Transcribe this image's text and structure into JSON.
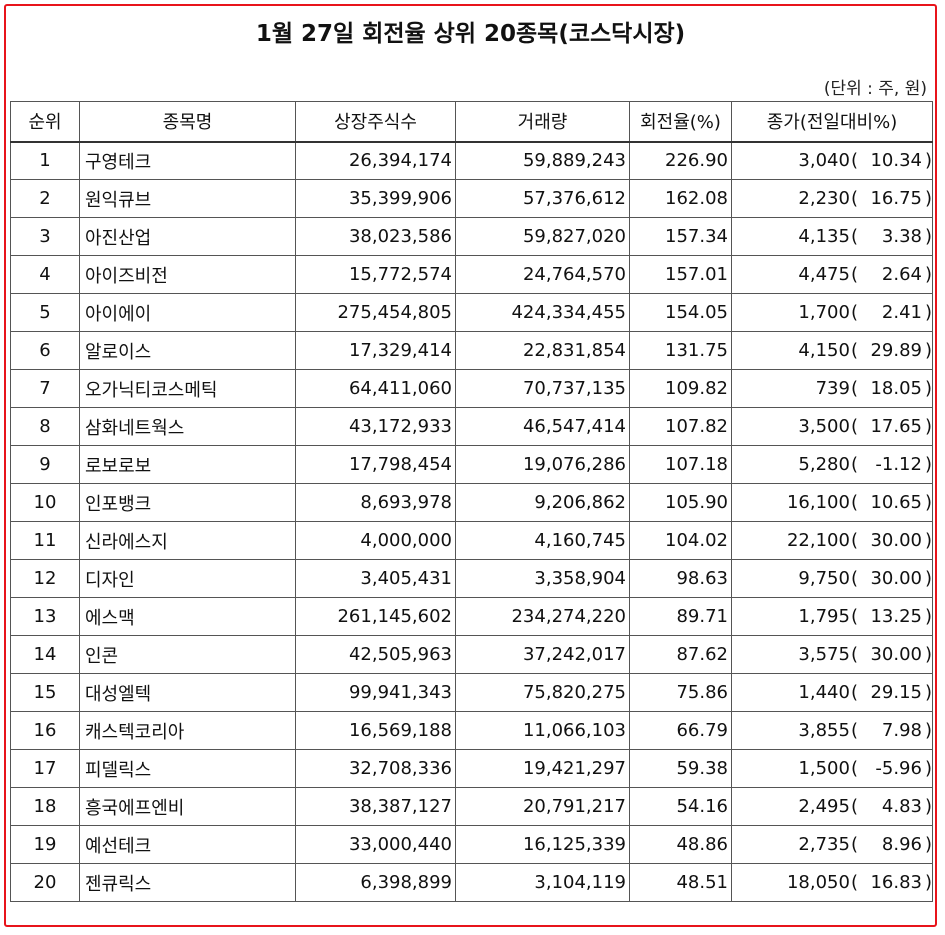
{
  "title": "1월 27일 회전율 상위 20종목(코스닥시장)",
  "unit_note": "(단위 : 주, 원)",
  "columns": [
    "순위",
    "종목명",
    "상장주식수",
    "거래량",
    "회전율(%)",
    "종가(전일대비%)"
  ],
  "rows": [
    {
      "rank": "1",
      "name": "구영테크",
      "shares": "26,394,174",
      "volume": "59,889,243",
      "turnover": "226.90",
      "price": "3,040",
      "change": "10.34"
    },
    {
      "rank": "2",
      "name": "원익큐브",
      "shares": "35,399,906",
      "volume": "57,376,612",
      "turnover": "162.08",
      "price": "2,230",
      "change": "16.75"
    },
    {
      "rank": "3",
      "name": "아진산업",
      "shares": "38,023,586",
      "volume": "59,827,020",
      "turnover": "157.34",
      "price": "4,135",
      "change": "3.38"
    },
    {
      "rank": "4",
      "name": "아이즈비전",
      "shares": "15,772,574",
      "volume": "24,764,570",
      "turnover": "157.01",
      "price": "4,475",
      "change": "2.64"
    },
    {
      "rank": "5",
      "name": "아이에이",
      "shares": "275,454,805",
      "volume": "424,334,455",
      "turnover": "154.05",
      "price": "1,700",
      "change": "2.41"
    },
    {
      "rank": "6",
      "name": "알로이스",
      "shares": "17,329,414",
      "volume": "22,831,854",
      "turnover": "131.75",
      "price": "4,150",
      "change": "29.89"
    },
    {
      "rank": "7",
      "name": "오가닉티코스메틱",
      "shares": "64,411,060",
      "volume": "70,737,135",
      "turnover": "109.82",
      "price": "739",
      "change": "18.05"
    },
    {
      "rank": "8",
      "name": "삼화네트웍스",
      "shares": "43,172,933",
      "volume": "46,547,414",
      "turnover": "107.82",
      "price": "3,500",
      "change": "17.65"
    },
    {
      "rank": "9",
      "name": "로보로보",
      "shares": "17,798,454",
      "volume": "19,076,286",
      "turnover": "107.18",
      "price": "5,280",
      "change": "-1.12"
    },
    {
      "rank": "10",
      "name": "인포뱅크",
      "shares": "8,693,978",
      "volume": "9,206,862",
      "turnover": "105.90",
      "price": "16,100",
      "change": "10.65"
    },
    {
      "rank": "11",
      "name": "신라에스지",
      "shares": "4,000,000",
      "volume": "4,160,745",
      "turnover": "104.02",
      "price": "22,100",
      "change": "30.00"
    },
    {
      "rank": "12",
      "name": "디자인",
      "shares": "3,405,431",
      "volume": "3,358,904",
      "turnover": "98.63",
      "price": "9,750",
      "change": "30.00"
    },
    {
      "rank": "13",
      "name": "에스맥",
      "shares": "261,145,602",
      "volume": "234,274,220",
      "turnover": "89.71",
      "price": "1,795",
      "change": "13.25"
    },
    {
      "rank": "14",
      "name": "인콘",
      "shares": "42,505,963",
      "volume": "37,242,017",
      "turnover": "87.62",
      "price": "3,575",
      "change": "30.00"
    },
    {
      "rank": "15",
      "name": "대성엘텍",
      "shares": "99,941,343",
      "volume": "75,820,275",
      "turnover": "75.86",
      "price": "1,440",
      "change": "29.15"
    },
    {
      "rank": "16",
      "name": "캐스텍코리아",
      "shares": "16,569,188",
      "volume": "11,066,103",
      "turnover": "66.79",
      "price": "3,855",
      "change": "7.98"
    },
    {
      "rank": "17",
      "name": "피델릭스",
      "shares": "32,708,336",
      "volume": "19,421,297",
      "turnover": "59.38",
      "price": "1,500",
      "change": "-5.96"
    },
    {
      "rank": "18",
      "name": "흥국에프엔비",
      "shares": "38,387,127",
      "volume": "20,791,217",
      "turnover": "54.16",
      "price": "2,495",
      "change": "4.83"
    },
    {
      "rank": "19",
      "name": "예선테크",
      "shares": "33,000,440",
      "volume": "16,125,339",
      "turnover": "48.86",
      "price": "2,735",
      "change": "8.96"
    },
    {
      "rank": "20",
      "name": "젠큐릭스",
      "shares": "6,398,899",
      "volume": "3,104,119",
      "turnover": "48.51",
      "price": "18,050",
      "change": "16.83"
    }
  ],
  "colors": {
    "frame_border": "#e8141b",
    "grid_line": "#555555",
    "text": "#111111"
  }
}
